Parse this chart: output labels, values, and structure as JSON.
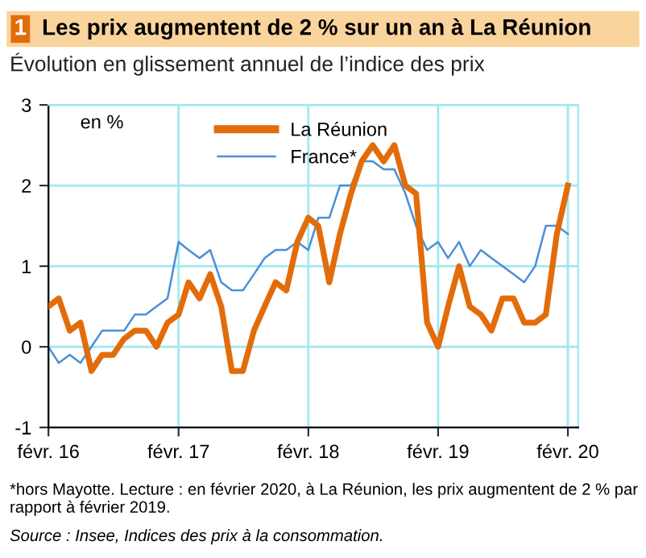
{
  "chart_data": {
    "type": "line",
    "title": "1 Les prix augmentent de 2 % sur un an à La Réunion",
    "subtitle": "Évolution en glissement annuel de l’indice des prix",
    "ylabel": "en %",
    "x": [
      "2016-02",
      "2016-03",
      "2016-04",
      "2016-05",
      "2016-06",
      "2016-07",
      "2016-08",
      "2016-09",
      "2016-10",
      "2016-11",
      "2016-12",
      "2017-01",
      "2017-02",
      "2017-03",
      "2017-04",
      "2017-05",
      "2017-06",
      "2017-07",
      "2017-08",
      "2017-09",
      "2017-10",
      "2017-11",
      "2017-12",
      "2018-01",
      "2018-02",
      "2018-03",
      "2018-04",
      "2018-05",
      "2018-06",
      "2018-07",
      "2018-08",
      "2018-09",
      "2018-10",
      "2018-11",
      "2018-12",
      "2019-01",
      "2019-02",
      "2019-03",
      "2019-04",
      "2019-05",
      "2019-06",
      "2019-07",
      "2019-08",
      "2019-09",
      "2019-10",
      "2019-11",
      "2019-12",
      "2020-01",
      "2020-02"
    ],
    "series": [
      {
        "name": "La Réunion",
        "color": "#e36c0a",
        "values": [
          0.5,
          0.6,
          0.2,
          0.3,
          -0.3,
          -0.1,
          -0.1,
          0.1,
          0.2,
          0.2,
          0,
          0.3,
          0.4,
          0.8,
          0.6,
          0.9,
          0.5,
          -0.3,
          -0.3,
          0.2,
          0.5,
          0.8,
          0.7,
          1.3,
          1.6,
          1.5,
          0.8,
          1.4,
          1.9,
          2.3,
          2.5,
          2.3,
          2.5,
          2.0,
          1.9,
          0.3,
          0,
          0.5,
          1.0,
          0.5,
          0.4,
          0.2,
          0.6,
          0.6,
          0.3,
          0.3,
          0.4,
          1.4,
          2.0
        ]
      },
      {
        "name": "France*",
        "color": "#4a8fd8",
        "values": [
          0,
          -0.2,
          -0.1,
          -0.2,
          0,
          0.2,
          0.2,
          0.2,
          0.4,
          0.4,
          0.5,
          0.6,
          1.3,
          1.2,
          1.1,
          1.2,
          0.8,
          0.7,
          0.7,
          0.9,
          1.1,
          1.2,
          1.2,
          1.3,
          1.2,
          1.6,
          1.6,
          2.0,
          2.0,
          2.3,
          2.3,
          2.2,
          2.2,
          1.9,
          1.5,
          1.2,
          1.3,
          1.1,
          1.3,
          1.0,
          1.2,
          1.1,
          1.0,
          0.9,
          0.8,
          1.0,
          1.5,
          1.5,
          1.4
        ]
      }
    ],
    "xlim": [
      "2016-02",
      "2020-03"
    ],
    "xticks": [
      {
        "value": "2016-02",
        "label": "févr. 16"
      },
      {
        "value": "2017-02",
        "label": "févr. 17"
      },
      {
        "value": "2018-02",
        "label": "févr. 18"
      },
      {
        "value": "2019-02",
        "label": "févr. 19"
      },
      {
        "value": "2020-02",
        "label": "févr. 20"
      }
    ],
    "ylim": [
      -1,
      3
    ],
    "yticks": [
      -1,
      0,
      1,
      2,
      3
    ],
    "grid": true,
    "legend": "top",
    "marker": "none",
    "line_style": "solid",
    "annotations": [
      "*hors Mayotte. Lecture : en février 2020, à La Réunion, les prix augmentent de 2 % par rapport à février 2019.",
      "Source : Insee, Indices des prix à la consommation."
    ]
  }
}
